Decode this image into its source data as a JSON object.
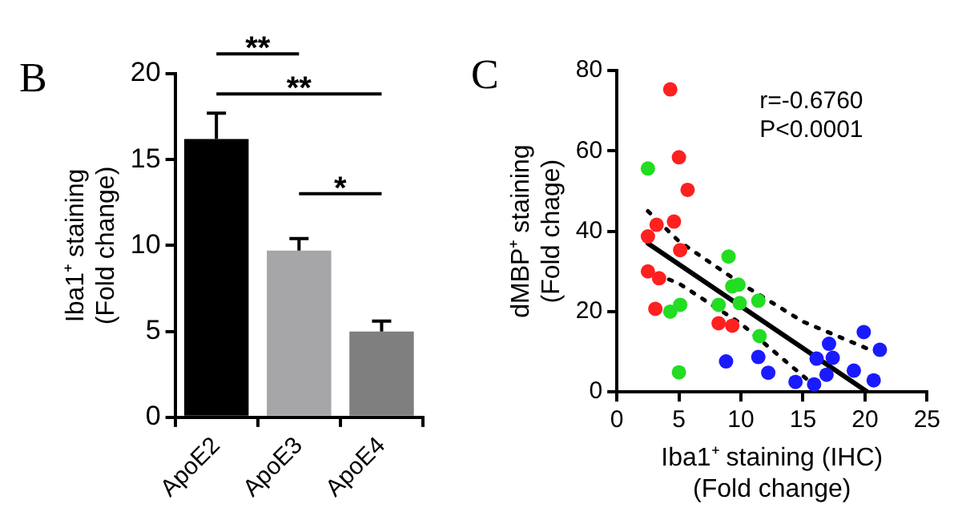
{
  "chart_data": [
    {
      "type": "bar",
      "title": "B",
      "ylabel": "Iba1⁺ staining\n(Fold change)",
      "categories": [
        "ApoE2",
        "ApoE3",
        "ApoE4"
      ],
      "values": [
        16.2,
        9.7,
        5.0
      ],
      "colors": [
        "#000000",
        "#a6a6a8",
        "#7f7f7f"
      ],
      "errors": [
        [
          16.2,
          17.7
        ],
        [
          9.7,
          10.4
        ],
        [
          5.0,
          5.6
        ]
      ],
      "ylim": [
        0,
        20
      ],
      "yticks": [
        0,
        5,
        10,
        15,
        20
      ],
      "grid": false,
      "legend": false,
      "annotations": [
        "**",
        "**",
        "*"
      ]
    },
    {
      "type": "scatter",
      "title": "C",
      "xlabel": "Iba1⁺ staining (IHC)\n(Fold change)",
      "ylabel": "dMBP⁺ staining\n(Fold chage)",
      "xlim": [
        0,
        25
      ],
      "xticks": [
        0,
        5,
        10,
        15,
        20,
        25
      ],
      "ylim": [
        0,
        80
      ],
      "yticks": [
        0,
        20,
        40,
        60,
        80
      ],
      "grid": false,
      "legend": false,
      "marker": "circle",
      "annotations": [
        "r=-0.6760",
        "P<0.0001"
      ],
      "series": [
        {
          "color": "#ff2020",
          "x": [
            4.3,
            5.0,
            5.7,
            4.6,
            3.2,
            2.5,
            5.1,
            2.5,
            3.4,
            3.1,
            8.2,
            9.3
          ],
          "values": [
            75.3,
            58.4,
            50.3,
            42.4,
            41.6,
            38.7,
            35.3,
            30,
            28.3,
            20.7,
            17.1,
            16.5
          ]
        },
        {
          "color": "#22dd22",
          "x": [
            2.5,
            9.0,
            9.3,
            9.8,
            9.9,
            8.2,
            11.4,
            5.1,
            4.3,
            11.5,
            5.0
          ],
          "values": [
            55.6,
            33.7,
            26.3,
            26.7,
            22.1,
            21.7,
            22.7,
            21.7,
            20,
            13.9,
            4.9
          ]
        },
        {
          "color": "#1a1aff",
          "x": [
            8.8,
            11.4,
            12.2,
            14.4,
            15.9,
            16.1,
            16.9,
            17.1,
            17.4,
            19.1,
            19.9,
            20.7,
            21.2
          ],
          "values": [
            7.6,
            8.7,
            4.8,
            2.5,
            1.9,
            8.3,
            4.3,
            12,
            8.5,
            5.3,
            14.9,
            2.9,
            10.5
          ]
        },
        {
          "type": "line",
          "color": "#000000",
          "marker": "none",
          "line_style": "solid",
          "x": [
            2.5,
            20.2
          ],
          "values": [
            37,
            0
          ]
        },
        {
          "type": "line",
          "color": "#000000",
          "marker": "none",
          "line_style": "dotted",
          "x": [
            2.5,
            5,
            10,
            15,
            20.8
          ],
          "values": [
            45,
            37.5,
            27,
            17.5,
            10
          ]
        },
        {
          "type": "line",
          "color": "#000000",
          "marker": "none",
          "line_style": "dotted",
          "x": [
            4.2,
            5,
            10,
            15,
            16.5
          ],
          "values": [
            28,
            27,
            17,
            4,
            0
          ]
        }
      ]
    }
  ]
}
